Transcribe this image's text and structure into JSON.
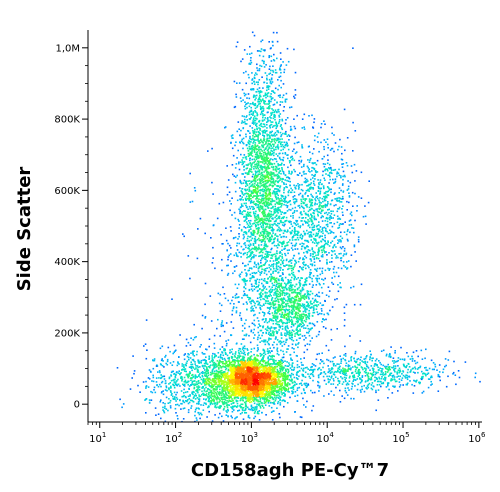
{
  "chart_data": {
    "type": "scatter",
    "title": "",
    "xlabel": "CD158agh PE-Cy™7",
    "ylabel": "Side Scatter",
    "x_scale": "log",
    "xlim": [
      7,
      1100000
    ],
    "ylim": [
      -50000,
      1050000
    ],
    "x_ticks": [
      {
        "value": 10,
        "base": "10",
        "exp": "1"
      },
      {
        "value": 100,
        "base": "10",
        "exp": "2"
      },
      {
        "value": 1000,
        "base": "10",
        "exp": "3"
      },
      {
        "value": 10000,
        "base": "10",
        "exp": "4"
      },
      {
        "value": 100000,
        "base": "10",
        "exp": "5"
      },
      {
        "value": 1000000,
        "base": "10",
        "exp": "6"
      }
    ],
    "y_ticks": [
      {
        "value": 0,
        "label": "0"
      },
      {
        "value": 200000,
        "label": "200K"
      },
      {
        "value": 400000,
        "label": "400K"
      },
      {
        "value": 600000,
        "label": "600K"
      },
      {
        "value": 800000,
        "label": "800K"
      },
      {
        "value": 1000000,
        "label": "1,0M"
      }
    ],
    "grid": false,
    "legend": "none",
    "density_colormap": [
      "#0000ff",
      "#00b0ff",
      "#00e5c8",
      "#40ff40",
      "#ffff00",
      "#ff8000",
      "#ff0000"
    ],
    "populations": [
      {
        "x_log_center": 3.0,
        "y_center": 70000,
        "x_log_spread": 0.25,
        "y_spread": 35000,
        "weight": 0.28
      },
      {
        "x_log_center": 3.15,
        "y_center": 620000,
        "x_log_spread": 0.17,
        "y_spread": 180000,
        "weight": 0.25
      },
      {
        "x_log_center": 3.5,
        "y_center": 270000,
        "x_log_spread": 0.2,
        "y_spread": 50000,
        "weight": 0.08
      },
      {
        "x_log_center": 3.85,
        "y_center": 530000,
        "x_log_spread": 0.25,
        "y_spread": 110000,
        "weight": 0.11
      },
      {
        "x_log_center": 4.5,
        "y_center": 90000,
        "x_log_spread": 0.55,
        "y_spread": 30000,
        "weight": 0.08
      },
      {
        "x_log_center": 2.4,
        "y_center": 60000,
        "x_log_spread": 0.4,
        "y_spread": 50000,
        "weight": 0.12
      },
      {
        "x_log_center": 3.2,
        "y_center": 330000,
        "x_log_spread": 0.45,
        "y_spread": 200000,
        "weight": 0.08
      }
    ]
  }
}
